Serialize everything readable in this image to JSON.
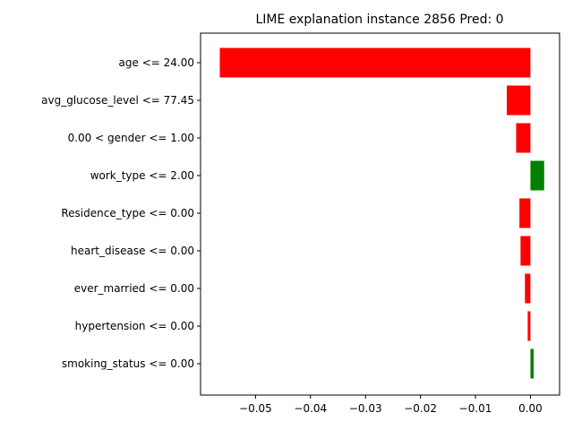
{
  "chart_data": {
    "type": "bar",
    "orientation": "horizontal",
    "title": "LIME explanation instance 2856 Pred: 0",
    "xlabel": "",
    "ylabel": "",
    "categories": [
      "age <= 24.00",
      "avg_glucose_level <= 77.45",
      "0.00 < gender <= 1.00",
      "work_type <= 2.00",
      "Residence_type <= 0.00",
      "heart_disease <= 0.00",
      "ever_married <= 0.00",
      "hypertension <= 0.00",
      "smoking_status <= 0.00"
    ],
    "values": [
      -0.0565,
      -0.0043,
      -0.0026,
      0.0025,
      -0.002,
      -0.0018,
      -0.001,
      -0.0005,
      0.0006
    ],
    "xlim": [
      -0.06,
      0.0053
    ],
    "xticks": [
      -0.05,
      -0.04,
      -0.03,
      -0.02,
      -0.01,
      0.0
    ],
    "xtick_labels": [
      "−0.05",
      "−0.04",
      "−0.03",
      "−0.02",
      "−0.01",
      "0.00"
    ],
    "colors": {
      "positive": "#008000",
      "negative": "#ff0000"
    },
    "grid": false,
    "legend": "none"
  }
}
